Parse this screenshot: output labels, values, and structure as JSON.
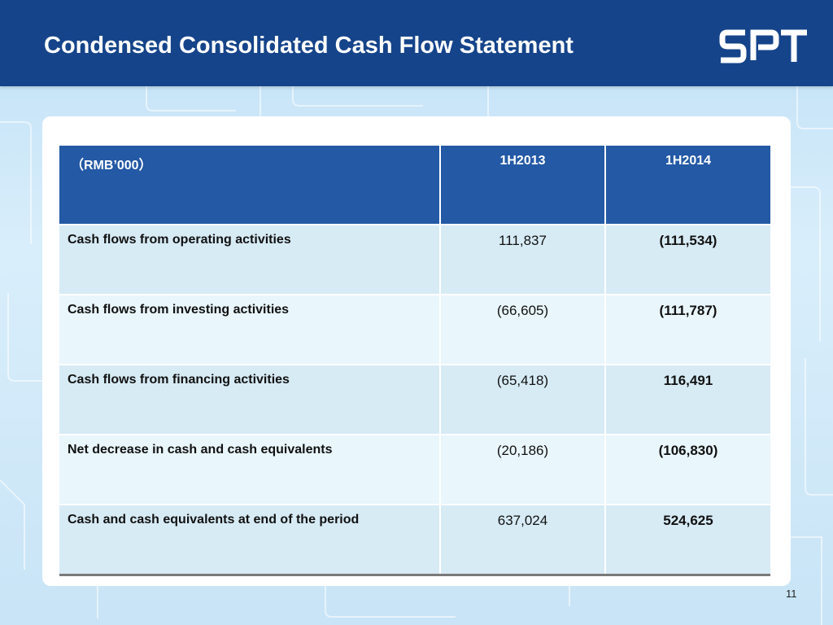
{
  "header": {
    "title": "Condensed Consolidated Cash Flow Statement",
    "logo_text": "SPT"
  },
  "table": {
    "columns": [
      "（RMB’000）",
      "1H2013",
      "1H2014"
    ],
    "rows": [
      {
        "label": "Cash flows from operating activities",
        "h2013": "111,837",
        "h2014": "(111,534)"
      },
      {
        "label": "Cash flows from investing activities",
        "h2013": "(66,605)",
        "h2014": "(111,787)"
      },
      {
        "label": "Cash flows from financing activities",
        "h2013": "(65,418)",
        "h2014": "116,491"
      },
      {
        "label": "Net decrease in cash and cash equivalents",
        "h2013": "(20,186)",
        "h2014": "(106,830)"
      },
      {
        "label": "Cash and cash equivalents at end of the period",
        "h2013": "637,024",
        "h2014": "524,625"
      }
    ]
  },
  "footer": {
    "page_number": "11"
  },
  "colors": {
    "header_bg": "#15448a",
    "table_header_bg": "#2359a5",
    "row_odd": "#d7ebf5",
    "row_even": "#e9f6fb"
  }
}
